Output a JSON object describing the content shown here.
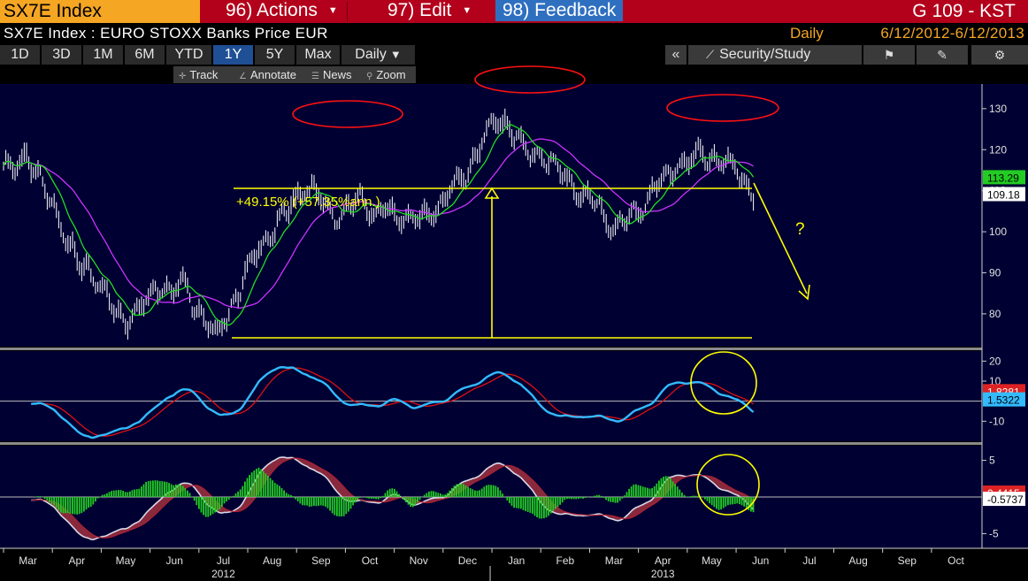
{
  "header": {
    "ticker": "SX7E Index",
    "actions_label": "96) Actions",
    "edit_label": "97) Edit",
    "feedback_label": "98) Feedback",
    "function_label": "G 109 - KST"
  },
  "info": {
    "subtitle": "SX7E Index : EURO STOXX Banks Price EUR",
    "period": "Daily",
    "range": "6/12/2012-6/12/2013"
  },
  "toolbar": {
    "ranges": [
      "1D",
      "3D",
      "1M",
      "6M",
      "YTD",
      "1Y",
      "5Y",
      "Max"
    ],
    "active_range": "1Y",
    "frequency": "Daily",
    "collapse_label": "«",
    "security_study_label": "Security/Study"
  },
  "subtoolbar": {
    "track_label": "Track",
    "annotate_label": "Annotate",
    "news_label": "News",
    "zoom_label": "Zoom"
  },
  "colors": {
    "background": "#000033",
    "price_bars": "#ffffff",
    "ma_short": "#22dd22",
    "ma_long": "#cc33ff",
    "signal": "#dd1111",
    "kst": "#33bbff",
    "annotation": "#ffff00",
    "circles": "#ff1111"
  },
  "chart_data": [
    {
      "type": "line",
      "panel": "price",
      "series": [
        {
          "x": [
            "2012-03-01",
            "2012-03-08",
            "2012-03-15",
            "2012-03-22",
            "2012-03-29",
            "2012-04-05",
            "2012-04-12",
            "2012-04-19",
            "2012-04-26",
            "2012-05-03",
            "2012-05-10",
            "2012-05-17",
            "2012-05-24",
            "2012-05-31",
            "2012-06-07",
            "2012-06-14",
            "2012-06-21",
            "2012-06-28",
            "2012-07-05",
            "2012-07-12",
            "2012-07-19",
            "2012-07-26",
            "2012-08-02",
            "2012-08-09",
            "2012-08-16",
            "2012-08-23",
            "2012-08-30",
            "2012-09-06",
            "2012-09-13",
            "2012-09-20",
            "2012-09-27",
            "2012-10-04",
            "2012-10-11",
            "2012-10-18",
            "2012-10-25",
            "2012-11-01",
            "2012-11-08",
            "2012-11-15",
            "2012-11-22",
            "2012-11-29",
            "2012-12-06",
            "2012-12-13",
            "2012-12-20",
            "2012-12-27",
            "2013-01-03",
            "2013-01-10",
            "2013-01-17",
            "2013-01-24",
            "2013-01-31",
            "2013-02-07",
            "2013-02-14",
            "2013-02-21",
            "2013-02-28",
            "2013-03-07",
            "2013-03-14",
            "2013-03-21",
            "2013-03-28",
            "2013-04-04",
            "2013-04-11",
            "2013-04-18",
            "2013-04-25",
            "2013-05-02",
            "2013-05-09",
            "2013-05-16",
            "2013-05-23",
            "2013-05-30",
            "2013-06-06",
            "2013-06-12"
          ],
          "values": [
            116,
            115,
            119,
            114,
            108,
            103,
            96,
            91,
            89,
            86,
            80,
            78,
            82,
            84,
            87,
            86,
            88,
            82,
            79,
            74,
            80,
            86,
            92,
            97,
            100,
            104,
            108,
            111,
            109,
            105,
            103,
            107,
            108,
            104,
            106,
            103,
            104,
            103,
            104,
            107,
            111,
            113,
            118,
            124,
            127,
            126,
            122,
            118,
            119,
            116,
            114,
            110,
            108,
            107,
            101,
            102,
            104,
            106,
            111,
            113,
            116,
            117,
            119,
            118,
            117,
            116,
            112,
            109
          ]
        }
      ],
      "ylim": [
        72,
        136
      ],
      "yticks": [
        80,
        90,
        100,
        110,
        120,
        130
      ],
      "last_value": 109.18,
      "ma_value": 113.29,
      "annotation_text": "+49.15% (+57.35%ann.)",
      "question_mark": "?"
    },
    {
      "type": "line",
      "panel": "kst",
      "yticks": [
        20,
        10,
        -10
      ],
      "ylim": [
        -20,
        25
      ],
      "kst_value": "1.5322",
      "signal_value": "1.8281"
    },
    {
      "type": "line",
      "panel": "oscillator",
      "yticks": [
        5,
        -5
      ],
      "ylim": [
        -7,
        7
      ],
      "hist_value": "-0.5737",
      "signal_value": "0.4415"
    }
  ],
  "xaxis": {
    "months": [
      "Mar",
      "Apr",
      "May",
      "Jun",
      "Jul",
      "Aug",
      "Sep",
      "Oct",
      "Nov",
      "Dec",
      "Jan",
      "Feb",
      "Mar",
      "Apr",
      "May",
      "Jun",
      "Jul",
      "Aug",
      "Sep",
      "Oct"
    ],
    "years": [
      "2012",
      "2013"
    ]
  }
}
